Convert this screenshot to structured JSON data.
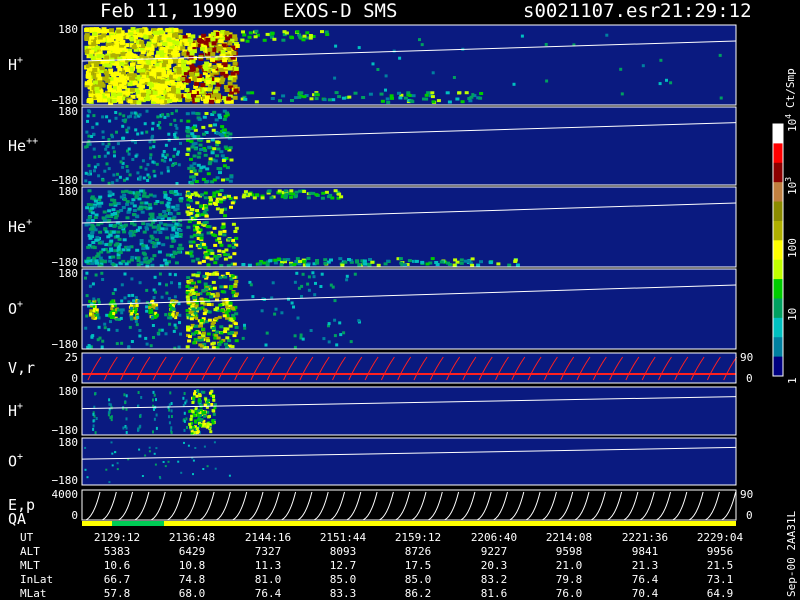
{
  "header": {
    "date": "Feb 11, 1990",
    "instrument": "EXOS-D SMS",
    "file": "s0021107.esr",
    "time": "21:29:12"
  },
  "colorbar": {
    "unit": "Ct/Smp",
    "labels": [
      {
        "text": "10",
        "sup": "4",
        "value": 10000
      },
      {
        "text": "10",
        "sup": "3",
        "value": 1000
      },
      {
        "text": "100",
        "sup": "",
        "value": 100
      },
      {
        "text": "10",
        "sup": "",
        "value": 10
      },
      {
        "text": "1",
        "sup": "",
        "value": 1
      }
    ],
    "colors": [
      "#ffffff",
      "#ff0000",
      "#8b0000",
      "#c08040",
      "#8b8b00",
      "#b0b000",
      "#ffff00",
      "#c0ff00",
      "#00cc00",
      "#00a060",
      "#00c0c0",
      "#0080a0",
      "#000080"
    ]
  },
  "panels": [
    {
      "id": "hplus",
      "label": "H",
      "sup": "+",
      "ytop": "180",
      "ybot": "−180"
    },
    {
      "id": "heplusplus",
      "label": "He",
      "sup": "++",
      "ytop": "180",
      "ybot": "−180"
    },
    {
      "id": "heplus",
      "label": "He",
      "sup": "+",
      "ytop": "180",
      "ybot": "−180"
    },
    {
      "id": "oplus",
      "label": "O",
      "sup": "+",
      "ytop": "180",
      "ybot": "−180"
    },
    {
      "id": "vr",
      "label": "V,r",
      "sup": "",
      "ytop": "25",
      "ybot": "0",
      "yright_top": "90",
      "yright_bot": "0"
    },
    {
      "id": "hplus2",
      "label": "H",
      "sup": "+",
      "ytop": "180",
      "ybot": "−180"
    },
    {
      "id": "oplus2",
      "label": "O",
      "sup": "+",
      "ytop": "180",
      "ybot": "−180"
    },
    {
      "id": "ep",
      "label": "E,p",
      "label2": "QA",
      "sup": "",
      "ytop": "4000",
      "ybot": "0",
      "yright_top": "90",
      "yright_bot": "0"
    }
  ],
  "footer_note": "Sep-00 2AA31L",
  "orbit_table": {
    "rows": [
      {
        "name": "UT",
        "values": [
          "2129:12",
          "2136:48",
          "2144:16",
          "2151:44",
          "2159:12",
          "2206:40",
          "2214:08",
          "2221:36",
          "2229:04"
        ]
      },
      {
        "name": "ALT",
        "values": [
          "5383",
          "6429",
          "7327",
          "8093",
          "8726",
          "9227",
          "9598",
          "9841",
          "9956"
        ]
      },
      {
        "name": "MLT",
        "values": [
          "10.6",
          "10.8",
          "11.3",
          "12.7",
          "17.5",
          "20.3",
          "21.0",
          "21.3",
          "21.5"
        ]
      },
      {
        "name": "InLat",
        "values": [
          "66.7",
          "74.8",
          "81.0",
          "85.0",
          "85.0",
          "83.2",
          "79.8",
          "76.4",
          "73.1"
        ]
      },
      {
        "name": "MLat",
        "values": [
          "57.8",
          "68.0",
          "76.4",
          "83.3",
          "86.2",
          "81.6",
          "76.0",
          "70.4",
          "64.9"
        ]
      }
    ]
  },
  "chart_data": {
    "type": "heatmap",
    "x": [
      "2129:12",
      "2136:48",
      "2144:16",
      "2151:44",
      "2159:12",
      "2206:40",
      "2214:08",
      "2221:36",
      "2229:04"
    ],
    "panels": [
      "H+",
      "He++",
      "He+",
      "O+",
      "V,r",
      "H+",
      "O+",
      "E,p"
    ],
    "colorscale": "log",
    "zlim": [
      1,
      10000
    ],
    "zlabel": "Ct/Smp"
  }
}
